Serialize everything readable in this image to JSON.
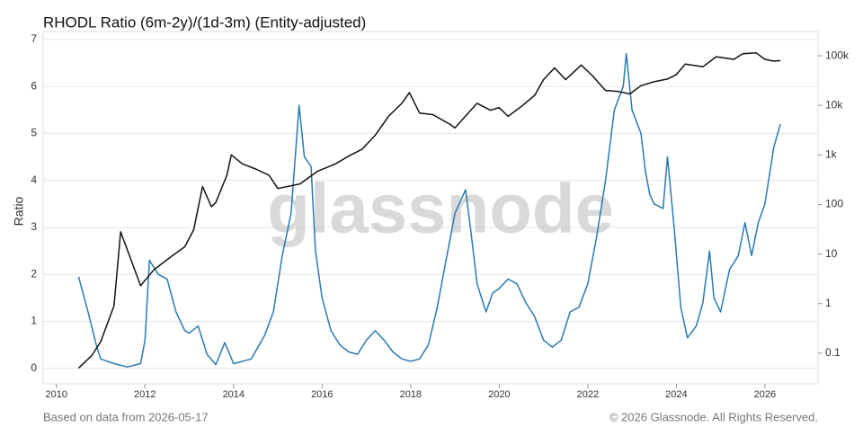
{
  "chart_data": {
    "type": "line",
    "title": "RHODL Ratio (6m-2y)/(1d-3m) (Entity-adjusted)",
    "y_label": "Ratio",
    "watermark": "glassnode",
    "footer_left": "Based on data from 2026-05-17",
    "footer_right": "© 2026 Glassnode. All Rights Reserved.",
    "xlim": [
      2009.7,
      2027.2
    ],
    "xticks": [
      2010,
      2012,
      2014,
      2016,
      2018,
      2020,
      2022,
      2024,
      2026
    ],
    "ylim": [
      -0.33,
      7.17
    ],
    "yticks": [
      0,
      1,
      2,
      3,
      4,
      5,
      6,
      7
    ],
    "y2lim": [
      0.024,
      310000
    ],
    "y2log": true,
    "y2ticks": [
      {
        "value": 100000,
        "label": "100k"
      },
      {
        "value": 10000,
        "label": "10k"
      },
      {
        "value": 1000,
        "label": "1k"
      },
      100,
      10,
      1,
      0.1
    ],
    "grid": true,
    "series": [
      {
        "color": "#2a7ab0",
        "axis": "y",
        "x": [
          2010.5,
          2010.7,
          2010.9,
          2011.0,
          2011.3,
          2011.6,
          2011.9,
          2012.0,
          2012.1,
          2012.3,
          2012.5,
          2012.7,
          2012.9,
          2013.0,
          2013.2,
          2013.4,
          2013.6,
          2013.8,
          2014.0,
          2014.4,
          2014.7,
          2014.9,
          2015.1,
          2015.3,
          2015.48,
          2015.6,
          2015.75,
          2015.85,
          2016.0,
          2016.2,
          2016.4,
          2016.6,
          2016.8,
          2017.0,
          2017.2,
          2017.4,
          2017.6,
          2017.8,
          2018.0,
          2018.2,
          2018.4,
          2018.6,
          2018.8,
          2019.0,
          2019.24,
          2019.35,
          2019.5,
          2019.7,
          2019.85,
          2020.0,
          2020.2,
          2020.4,
          2020.6,
          2020.8,
          2021.0,
          2021.2,
          2021.4,
          2021.6,
          2021.8,
          2022.0,
          2022.2,
          2022.4,
          2022.6,
          2022.8,
          2022.87,
          2023.0,
          2023.2,
          2023.3,
          2023.4,
          2023.5,
          2023.7,
          2023.8,
          2023.95,
          2024.1,
          2024.25,
          2024.45,
          2024.6,
          2024.75,
          2024.85,
          2025.0,
          2025.2,
          2025.4,
          2025.55,
          2025.7,
          2025.85,
          2026.0,
          2026.2,
          2026.35
        ],
        "values": [
          1.95,
          1.25,
          0.5,
          0.2,
          0.1,
          0.03,
          0.1,
          0.6,
          2.3,
          2.0,
          1.9,
          1.2,
          0.8,
          0.75,
          0.9,
          0.3,
          0.08,
          0.55,
          0.1,
          0.2,
          0.7,
          1.2,
          2.4,
          3.3,
          5.6,
          4.5,
          4.3,
          2.5,
          1.5,
          0.8,
          0.5,
          0.35,
          0.3,
          0.6,
          0.8,
          0.6,
          0.35,
          0.2,
          0.15,
          0.2,
          0.5,
          1.3,
          2.3,
          3.3,
          3.8,
          3.0,
          1.8,
          1.2,
          1.6,
          1.7,
          1.9,
          1.8,
          1.4,
          1.1,
          0.6,
          0.45,
          0.6,
          1.2,
          1.3,
          1.8,
          2.8,
          4.0,
          5.5,
          6.0,
          6.7,
          5.5,
          5.0,
          4.2,
          3.7,
          3.5,
          3.4,
          4.5,
          3.0,
          1.3,
          0.65,
          0.9,
          1.4,
          2.5,
          1.5,
          1.2,
          2.1,
          2.4,
          3.1,
          2.4,
          3.1,
          3.5,
          4.7,
          5.2
        ]
      },
      {
        "color": "#111111",
        "axis": "y2",
        "x": [
          2010.5,
          2010.8,
          2011.0,
          2011.3,
          2011.45,
          2011.9,
          2012.2,
          2012.6,
          2012.9,
          2013.1,
          2013.3,
          2013.5,
          2013.6,
          2013.85,
          2013.95,
          2014.2,
          2014.5,
          2014.8,
          2015.0,
          2015.5,
          2015.9,
          2016.3,
          2016.6,
          2016.9,
          2017.2,
          2017.5,
          2017.8,
          2017.97,
          2018.2,
          2018.5,
          2018.9,
          2019.0,
          2019.3,
          2019.5,
          2019.8,
          2020.0,
          2020.2,
          2020.5,
          2020.8,
          2021.0,
          2021.25,
          2021.5,
          2021.85,
          2022.1,
          2022.4,
          2022.7,
          2022.95,
          2023.2,
          2023.5,
          2023.8,
          2024.0,
          2024.2,
          2024.6,
          2024.9,
          2025.3,
          2025.5,
          2025.8,
          2026.0,
          2026.2,
          2026.35
        ],
        "values": [
          0.05,
          0.09,
          0.17,
          0.9,
          28,
          2.3,
          4.8,
          9,
          14,
          31,
          230,
          90,
          110,
          390,
          1000,
          660,
          520,
          390,
          210,
          260,
          470,
          660,
          950,
          1300,
          2500,
          6000,
          11000,
          18000,
          7000,
          6500,
          4100,
          3500,
          7000,
          11000,
          8000,
          9000,
          6000,
          9500,
          16000,
          33000,
          57000,
          33000,
          65000,
          40000,
          20000,
          19000,
          17000,
          25000,
          30000,
          34000,
          42000,
          68000,
          60000,
          96000,
          85000,
          110000,
          115000,
          85000,
          78000,
          80000
        ]
      }
    ]
  }
}
